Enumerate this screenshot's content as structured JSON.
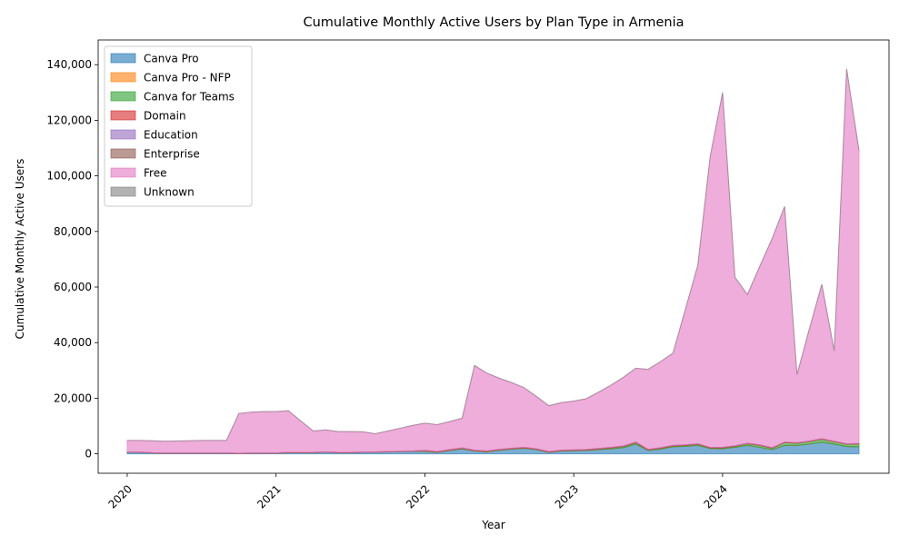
{
  "chart_data": {
    "type": "stacked_area",
    "title": "Cumulative Monthly Active Users by Plan Type in Armenia",
    "xlabel": "Year",
    "ylabel": "Cumulative Monthly Active Users",
    "x": [
      2020,
      2020.0833,
      2020.1667,
      2020.25,
      2020.3333,
      2020.4167,
      2020.5,
      2020.5833,
      2020.6667,
      2020.75,
      2020.8333,
      2020.9167,
      2021,
      2021.0833,
      2021.1667,
      2021.25,
      2021.3333,
      2021.4167,
      2021.5,
      2021.5833,
      2021.6667,
      2021.75,
      2021.8333,
      2021.9167,
      2022,
      2022.0833,
      2022.1667,
      2022.25,
      2022.3333,
      2022.4167,
      2022.5,
      2022.5833,
      2022.6667,
      2022.75,
      2022.8333,
      2022.9167,
      2023,
      2023.0833,
      2023.1667,
      2023.25,
      2023.3333,
      2023.4167,
      2023.5,
      2023.5833,
      2023.6667,
      2023.75,
      2023.8333,
      2023.9167,
      2024,
      2024.0833,
      2024.1667,
      2024.25,
      2024.3333,
      2024.4167,
      2024.5,
      2024.5833,
      2024.6667,
      2024.75,
      2024.8333,
      2024.9167
    ],
    "xlim": [
      2019.805,
      2025.118
    ],
    "xticks": [
      2020,
      2021,
      2022,
      2023,
      2024
    ],
    "ylim": [
      -7000,
      148900
    ],
    "yticks": [
      0,
      {
        "value": 20000,
        "label": "20,000"
      },
      {
        "value": 40000,
        "label": "40,000"
      },
      {
        "value": 60000,
        "label": "60,000"
      },
      {
        "value": 80000,
        "label": "80,000"
      },
      {
        "value": 100000,
        "label": "100,000"
      },
      {
        "value": 120000,
        "label": "120,000"
      },
      {
        "value": 140000,
        "label": "140,000"
      }
    ],
    "legend": "upper left",
    "series": [
      {
        "name": "Canva Pro",
        "color": "#1f77b4",
        "values": [
          500,
          500,
          300,
          200,
          200,
          200,
          200,
          200,
          200,
          100,
          200,
          200,
          200,
          400,
          400,
          400,
          600,
          400,
          400,
          500,
          600,
          700,
          800,
          900,
          900,
          500,
          1200,
          1800,
          1000,
          700,
          1300,
          1700,
          2000,
          1500,
          500,
          1000,
          1100,
          1200,
          1500,
          1800,
          2200,
          3500,
          1200,
          1700,
          2500,
          2700,
          3000,
          1900,
          1800,
          2300,
          3000,
          2300,
          1500,
          3000,
          3000,
          3500,
          4200,
          3500,
          2600,
          2500
        ]
      },
      {
        "name": "Canva Pro - NFP",
        "color": "#ff7f0e",
        "values": [
          0,
          0,
          0,
          0,
          0,
          0,
          0,
          0,
          0,
          0,
          0,
          0,
          0,
          0,
          0,
          0,
          0,
          0,
          0,
          0,
          0,
          0,
          0,
          0,
          0,
          0,
          0,
          0,
          0,
          0,
          0,
          0,
          0,
          0,
          0,
          0,
          0,
          0,
          0,
          0,
          0,
          0,
          0,
          0,
          0,
          0,
          0,
          0,
          0,
          0,
          0,
          0,
          0,
          0,
          0,
          0,
          0,
          0,
          0,
          0
        ]
      },
      {
        "name": "Canva for Teams",
        "color": "#2ca02c",
        "values": [
          0,
          0,
          0,
          0,
          0,
          0,
          0,
          0,
          0,
          0,
          0,
          0,
          0,
          0,
          0,
          0,
          0,
          0,
          0,
          0,
          0,
          0,
          0,
          0,
          100,
          100,
          100,
          100,
          100,
          100,
          100,
          100,
          100,
          100,
          100,
          100,
          100,
          150,
          200,
          300,
          400,
          500,
          200,
          300,
          300,
          300,
          400,
          200,
          300,
          400,
          600,
          700,
          500,
          1000,
          800,
          900,
          1000,
          800,
          800,
          1000
        ]
      },
      {
        "name": "Domain",
        "color": "#d62728",
        "values": [
          100,
          100,
          100,
          100,
          100,
          100,
          100,
          100,
          100,
          100,
          100,
          100,
          100,
          100,
          100,
          100,
          100,
          100,
          100,
          100,
          100,
          100,
          100,
          100,
          200,
          200,
          200,
          200,
          200,
          200,
          200,
          200,
          200,
          200,
          200,
          200,
          200,
          200,
          200,
          200,
          200,
          200,
          200,
          200,
          200,
          200,
          200,
          200,
          200,
          200,
          200,
          200,
          200,
          200,
          200,
          200,
          200,
          200,
          200,
          200
        ]
      },
      {
        "name": "Education",
        "color": "#9467bd",
        "values": [
          0,
          0,
          0,
          0,
          0,
          0,
          0,
          0,
          0,
          0,
          0,
          0,
          0,
          0,
          0,
          0,
          0,
          0,
          0,
          0,
          0,
          0,
          0,
          0,
          0,
          0,
          0,
          0,
          0,
          0,
          0,
          0,
          0,
          0,
          0,
          0,
          0,
          0,
          0,
          0,
          0,
          0,
          0,
          0,
          0,
          0,
          0,
          0,
          0,
          0,
          0,
          0,
          0,
          0,
          0,
          0,
          0,
          0,
          0,
          0
        ]
      },
      {
        "name": "Enterprise",
        "color": "#8c564b",
        "values": [
          0,
          0,
          0,
          0,
          0,
          0,
          0,
          0,
          0,
          0,
          0,
          0,
          0,
          0,
          0,
          0,
          0,
          0,
          0,
          0,
          0,
          0,
          0,
          0,
          0,
          0,
          0,
          0,
          0,
          0,
          0,
          0,
          0,
          0,
          0,
          0,
          0,
          0,
          0,
          0,
          0,
          0,
          0,
          0,
          0,
          0,
          0,
          0,
          0,
          0,
          0,
          0,
          0,
          0,
          0,
          0,
          0,
          0,
          0,
          0
        ]
      },
      {
        "name": "Free",
        "color": "#e377c2",
        "values": [
          4200,
          4200,
          4300,
          4200,
          4300,
          4400,
          4500,
          4500,
          4500,
          14300,
          14700,
          14900,
          14900,
          15000,
          11300,
          7700,
          7900,
          7500,
          7500,
          7300,
          6500,
          7400,
          8300,
          9200,
          9800,
          9700,
          10100,
          10700,
          30500,
          28000,
          25600,
          23600,
          21500,
          18800,
          16500,
          17100,
          17600,
          18250,
          20300,
          22400,
          24700,
          26600,
          28800,
          31000,
          33200,
          48800,
          64200,
          104700,
          127700,
          60600,
          53500,
          64300,
          75300,
          84800,
          24500,
          40400,
          55600,
          32500,
          134900,
          105300
        ]
      },
      {
        "name": "Unknown",
        "color": "#7f7f7f",
        "values": [
          0,
          0,
          0,
          0,
          0,
          0,
          0,
          0,
          0,
          0,
          0,
          0,
          0,
          0,
          0,
          0,
          0,
          0,
          0,
          0,
          0,
          0,
          0,
          0,
          0,
          0,
          0,
          0,
          0,
          0,
          0,
          0,
          0,
          0,
          0,
          0,
          0,
          0,
          0,
          0,
          0,
          0,
          0,
          0,
          0,
          0,
          0,
          0,
          0,
          0,
          0,
          0,
          0,
          0,
          0,
          0,
          0,
          0,
          0,
          0
        ]
      }
    ]
  }
}
